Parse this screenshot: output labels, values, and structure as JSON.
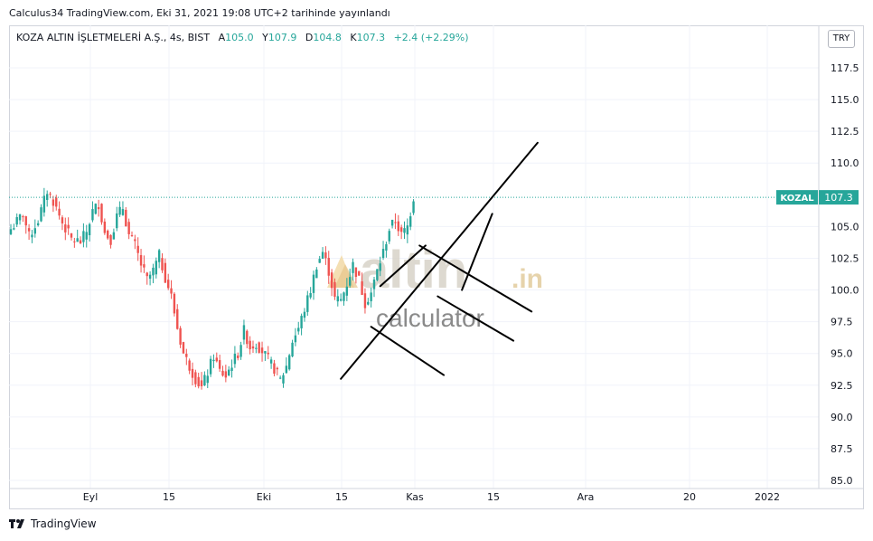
{
  "header": {
    "published": "Calculus34 TradingView.com, Eki 31, 2021 19:08 UTC+2 tarihinde yayınlandı"
  },
  "legend": {
    "symbol": "KOZA ALTIN İŞLETMELERİ A.Ş., 4s, BIST",
    "open_label": "A",
    "open": "105.0",
    "high_label": "Y",
    "high": "107.9",
    "low_label": "D",
    "low": "104.8",
    "close_label": "K",
    "close": "107.3",
    "change": "+2.4 (+2.29%)"
  },
  "currency": "TRY",
  "footer": {
    "brand": "TradingView"
  },
  "watermark": {
    "line1": "altin",
    "line1_suffix": ".in",
    "line2": "calculator"
  },
  "colors": {
    "up": "#26a69a",
    "down": "#ef5350",
    "price_line": "#26a69a",
    "grid": "#f0f3fa"
  },
  "chart_data": {
    "type": "candlestick",
    "y_ticks": [
      "117.5",
      "115.0",
      "112.5",
      "110.0",
      "105.0",
      "102.5",
      "100.0",
      "97.5",
      "95.0",
      "92.5",
      "90.0",
      "87.5",
      "85.0"
    ],
    "ylim": [
      85.0,
      118.0
    ],
    "x_ticks": [
      "Eyl",
      "15",
      "Eki",
      "15",
      "Kas",
      "15",
      "Ara",
      "20",
      "2022"
    ],
    "last_price": {
      "symbol": "KOZAL",
      "value": "107.3"
    },
    "price_path": [
      [
        0,
        104.8
      ],
      [
        4,
        106.0
      ],
      [
        6,
        104.2
      ],
      [
        9,
        105.5
      ],
      [
        12,
        107.8
      ],
      [
        14,
        107.0
      ],
      [
        17,
        105.3
      ],
      [
        20,
        104.0
      ],
      [
        23,
        103.8
      ],
      [
        25,
        104.6
      ],
      [
        27,
        106.2
      ],
      [
        29,
        106.8
      ],
      [
        31,
        104.5
      ],
      [
        33,
        104.0
      ],
      [
        35,
        105.8
      ],
      [
        37,
        106.5
      ],
      [
        39,
        104.3
      ],
      [
        41,
        103.5
      ],
      [
        43,
        102.0
      ],
      [
        45,
        100.8
      ],
      [
        47,
        101.5
      ],
      [
        49,
        102.7
      ],
      [
        51,
        101.0
      ],
      [
        53,
        99.5
      ],
      [
        55,
        97.0
      ],
      [
        57,
        95.0
      ],
      [
        59,
        94.0
      ],
      [
        61,
        93.0
      ],
      [
        63,
        92.3
      ],
      [
        65,
        93.5
      ],
      [
        67,
        94.8
      ],
      [
        69,
        93.6
      ],
      [
        71,
        93.2
      ],
      [
        73,
        94.2
      ],
      [
        75,
        95.0
      ],
      [
        77,
        96.8
      ],
      [
        79,
        95.5
      ],
      [
        81,
        95.8
      ],
      [
        83,
        95.2
      ],
      [
        85,
        94.5
      ],
      [
        87,
        93.8
      ],
      [
        89,
        92.9
      ],
      [
        91,
        94.0
      ],
      [
        93,
        96.0
      ],
      [
        95,
        97.0
      ],
      [
        97,
        98.5
      ],
      [
        99,
        100.0
      ],
      [
        101,
        102.0
      ],
      [
        103,
        103.0
      ],
      [
        105,
        101.5
      ],
      [
        107,
        99.3
      ],
      [
        109,
        99.2
      ],
      [
        111,
        100.5
      ],
      [
        113,
        102.0
      ],
      [
        115,
        100.8
      ],
      [
        117,
        99.0
      ],
      [
        119,
        99.8
      ],
      [
        121,
        101.5
      ],
      [
        123,
        103.0
      ],
      [
        125,
        104.8
      ],
      [
        127,
        105.5
      ],
      [
        129,
        104.3
      ],
      [
        131,
        105.0
      ],
      [
        133,
        107.3
      ]
    ],
    "drawings": [
      {
        "type": "trendline",
        "from": [
          109,
          93.0
        ],
        "to": [
          174,
          111.6
        ]
      },
      {
        "type": "trendline",
        "from": [
          141,
          99.5
        ],
        "to": [
          166,
          96.0
        ]
      },
      {
        "type": "trendline",
        "from": [
          135,
          103.5
        ],
        "to": [
          172,
          98.3
        ]
      },
      {
        "type": "trendline",
        "from": [
          122,
          100.3
        ],
        "to": [
          137,
          103.5
        ]
      },
      {
        "type": "trendline",
        "from": [
          119,
          97.1
        ],
        "to": [
          143,
          93.3
        ]
      },
      {
        "type": "trendline",
        "from": [
          149,
          100.0
        ],
        "to": [
          159,
          106.0
        ]
      }
    ]
  }
}
